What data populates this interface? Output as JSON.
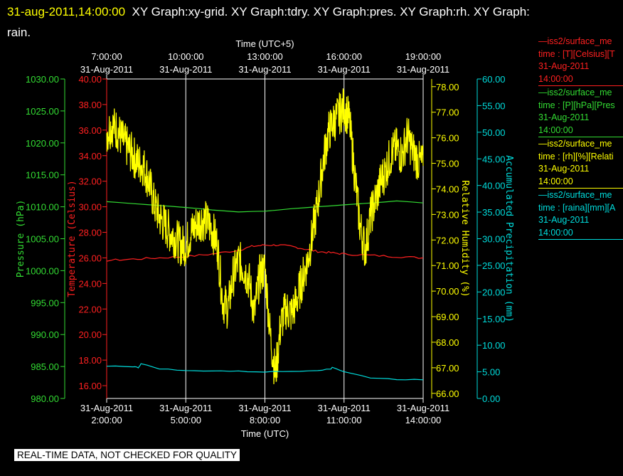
{
  "header": {
    "timestamp": "31-aug-2011,14:00:00",
    "graphs": "XY Graph:xy-grid.  XY Graph:tdry.  XY Graph:pres.  XY Graph:rh.  XY Graph:",
    "graphs_line2": "rain."
  },
  "footer": {
    "label": "REAL-TIME DATA, NOT CHECKED FOR QUALITY"
  },
  "legend": [
    {
      "source": "—iss2/surface_me",
      "var": "time : [T][Celsius][T",
      "date": "31-Aug-2011",
      "time": "14:00:00",
      "color": "#ff2020"
    },
    {
      "source": "—iss2/surface_me",
      "var": "time : [P][hPa][Pres",
      "date": "31-Aug-2011",
      "time": "14:00:00",
      "color": "#33dd33"
    },
    {
      "source": "—iss2/surface_me",
      "var": "time : [rh][%][Relati",
      "date": "31-Aug-2011",
      "time": "14:00:00",
      "color": "#ffff00"
    },
    {
      "source": "—iss2/surface_me",
      "var": "time : [raina][mm][A",
      "date": "31-Aug-2011",
      "time": "14:00:00",
      "color": "#00dddd"
    }
  ],
  "chart_data": {
    "type": "line",
    "grid": true,
    "x_bottom": {
      "label": "Time (UTC)",
      "ticks": [
        {
          "date": "31-Aug-2011",
          "time": "2:00:00",
          "hour": 2
        },
        {
          "date": "31-Aug-2011",
          "time": "5:00:00",
          "hour": 5
        },
        {
          "date": "31-Aug-2011",
          "time": "8:00:00",
          "hour": 8
        },
        {
          "date": "31-Aug-2011",
          "time": "11:00:00",
          "hour": 11
        },
        {
          "date": "31-Aug-2011",
          "time": "14:00:00",
          "hour": 14
        }
      ],
      "range_hours": [
        2,
        14
      ]
    },
    "x_top": {
      "label": "Time (UTC+5)",
      "ticks": [
        {
          "time": "7:00:00",
          "date": "31-Aug-2011",
          "hour": 7
        },
        {
          "time": "10:00:00",
          "date": "31-Aug-2011",
          "hour": 10
        },
        {
          "time": "13:00:00",
          "date": "31-Aug-2011",
          "hour": 13
        },
        {
          "time": "16:00:00",
          "date": "31-Aug-2011",
          "hour": 16
        },
        {
          "time": "19:00:00",
          "date": "31-Aug-2011",
          "hour": 19
        }
      ]
    },
    "axes": {
      "pressure": {
        "label": "Pressure (hPa)",
        "color": "#33dd33",
        "ylim": [
          980,
          1030
        ],
        "ticks": [
          "980.00",
          "985.00",
          "990.00",
          "995.00",
          "1000.00",
          "1005.00",
          "1010.00",
          "1015.00",
          "1020.00",
          "1025.00",
          "1030.00"
        ]
      },
      "temperature": {
        "label": "Temperature (Celsius)",
        "color": "#ff2020",
        "ylim": [
          15,
          40
        ],
        "ticks": [
          "16.00",
          "18.00",
          "20.00",
          "22.00",
          "24.00",
          "26.00",
          "28.00",
          "30.00",
          "32.00",
          "34.00",
          "36.00",
          "38.00",
          "40.00"
        ]
      },
      "rh": {
        "label": "Relative Humidity (%)",
        "color": "#ffff00",
        "ylim": [
          65.8,
          78.3
        ],
        "ticks": [
          "66.00",
          "67.00",
          "68.00",
          "69.00",
          "70.00",
          "71.00",
          "72.00",
          "73.00",
          "74.00",
          "75.00",
          "76.00",
          "77.00",
          "78.00"
        ]
      },
      "rain": {
        "label": "Accumulated Precipitation (mm)",
        "color": "#00dddd",
        "ylim": [
          0,
          60
        ],
        "ticks": [
          "0.00",
          "5.00",
          "10.00",
          "15.00",
          "20.00",
          "25.00",
          "30.00",
          "35.00",
          "40.00",
          "45.00",
          "50.00",
          "55.00",
          "60.00"
        ]
      }
    },
    "series": [
      {
        "name": "Pressure",
        "axis": "pressure",
        "color": "#33dd33",
        "x": [
          2.0,
          3.0,
          4.0,
          5.0,
          6.0,
          7.0,
          8.0,
          9.0,
          10.0,
          11.0,
          12.0,
          13.0,
          14.0
        ],
        "y": [
          1010.8,
          1010.5,
          1010.2,
          1009.9,
          1009.5,
          1009.2,
          1009.3,
          1009.7,
          1010.0,
          1010.3,
          1010.6,
          1010.9,
          1010.6
        ]
      },
      {
        "name": "Temperature",
        "axis": "temperature",
        "color": "#ff2020",
        "x": [
          2.0,
          3.0,
          4.0,
          5.0,
          6.0,
          7.0,
          7.5,
          8.0,
          8.5,
          9.0,
          9.5,
          10.0,
          10.5,
          11.0,
          12.0,
          13.0,
          14.0
        ],
        "y": [
          25.8,
          25.9,
          26.0,
          26.1,
          26.3,
          26.6,
          26.9,
          27.0,
          27.0,
          26.9,
          26.7,
          26.5,
          26.4,
          26.3,
          26.2,
          26.1,
          26.0
        ]
      },
      {
        "name": "Relative Humidity",
        "axis": "rh",
        "color": "#ffff00",
        "x": [
          2.0,
          2.2,
          2.4,
          2.6,
          2.8,
          3.0,
          3.2,
          3.4,
          3.6,
          3.8,
          4.0,
          4.2,
          4.4,
          4.6,
          4.8,
          5.0,
          5.2,
          5.4,
          5.6,
          5.8,
          6.0,
          6.2,
          6.4,
          6.6,
          6.8,
          7.0,
          7.2,
          7.4,
          7.6,
          7.8,
          8.0,
          8.2,
          8.4,
          8.6,
          8.8,
          9.0,
          9.2,
          9.4,
          9.6,
          9.8,
          10.0,
          10.2,
          10.4,
          10.6,
          10.8,
          11.0,
          11.2,
          11.4,
          11.6,
          11.8,
          12.0,
          12.2,
          12.4,
          12.6,
          12.8,
          13.0,
          13.2,
          13.4,
          13.6,
          13.8,
          14.0
        ],
        "y": [
          76.2,
          76.5,
          76.3,
          75.9,
          75.6,
          75.3,
          75.0,
          74.9,
          74.3,
          73.4,
          72.9,
          72.6,
          72.3,
          72.1,
          71.8,
          71.8,
          72.3,
          72.6,
          72.8,
          72.7,
          72.4,
          71.8,
          69.6,
          69.3,
          70.6,
          71.2,
          70.9,
          70.4,
          69.1,
          70.6,
          70.9,
          68.3,
          66.7,
          68.7,
          69.3,
          69.1,
          69.6,
          70.4,
          71.1,
          72.2,
          73.4,
          75.0,
          76.2,
          76.6,
          76.9,
          77.2,
          76.7,
          74.6,
          72.6,
          71.6,
          72.9,
          73.6,
          74.3,
          74.8,
          75.4,
          75.6,
          75.3,
          76.1,
          75.5,
          75.1,
          74.9
        ]
      },
      {
        "name": "Accumulated Precipitation",
        "axis": "rain",
        "color": "#00dddd",
        "x": [
          2.0,
          3.0,
          3.2,
          3.3,
          4.0,
          5.0,
          6.0,
          7.0,
          8.0,
          9.0,
          10.0,
          10.5,
          10.55,
          11.0,
          12.0,
          13.0,
          14.0
        ],
        "y": [
          6.1,
          6.0,
          5.8,
          6.5,
          5.6,
          5.2,
          5.2,
          5.1,
          5.0,
          5.1,
          5.3,
          5.5,
          5.9,
          5.0,
          3.9,
          3.6,
          3.5
        ]
      }
    ]
  }
}
